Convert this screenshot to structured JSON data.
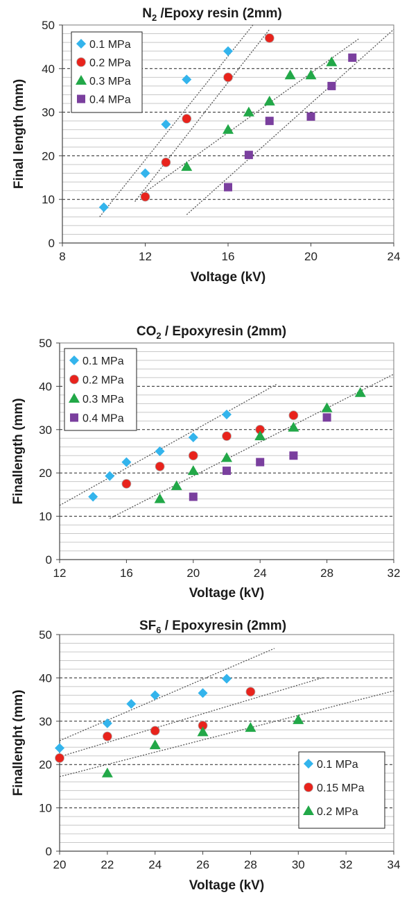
{
  "chart_data": [
    {
      "type": "scatter",
      "title": {
        "pre": "N",
        "sub": "2",
        "post": " /Epoxy resin  (2mm)"
      },
      "xlabel": "Voltage (kV)",
      "ylabel": "Final length (mm)",
      "xlim": [
        8,
        24
      ],
      "ylim": [
        0,
        50
      ],
      "xticks": [
        8,
        12,
        16,
        20,
        24
      ],
      "yticks": [
        0,
        10,
        20,
        30,
        40,
        50
      ],
      "legend_position": "top-left",
      "series": [
        {
          "name": "0.1 MPa",
          "marker": "diamond",
          "color": "#33b4ec",
          "x": [
            10,
            12,
            13,
            14,
            16
          ],
          "y": [
            8.2,
            16,
            27.2,
            37.5,
            44
          ]
        },
        {
          "name": "0.2 MPa",
          "marker": "circle",
          "color": "#e8231c",
          "x": [
            12,
            13,
            14,
            16,
            18
          ],
          "y": [
            10.6,
            18.5,
            28.5,
            38,
            47
          ]
        },
        {
          "name": "0.3 MPa",
          "marker": "triangle",
          "color": "#22a848",
          "x": [
            14,
            16,
            17,
            18,
            19,
            20,
            21
          ],
          "y": [
            17.5,
            26,
            30,
            32.5,
            38.5,
            38.5,
            41.5
          ]
        },
        {
          "name": "0.4 MPa",
          "marker": "square",
          "color": "#7a3f9e",
          "x": [
            16,
            17,
            18,
            20,
            21,
            22
          ],
          "y": [
            12.8,
            20.2,
            28,
            29,
            36,
            42.5
          ]
        }
      ],
      "trendlines": [
        {
          "x": [
            9.8,
            17.2
          ],
          "y": [
            6,
            50
          ]
        },
        {
          "x": [
            11.5,
            18
          ],
          "y": [
            9.5,
            49
          ]
        },
        {
          "x": [
            11.8,
            22.3
          ],
          "y": [
            11,
            46.8
          ]
        },
        {
          "x": [
            14,
            24
          ],
          "y": [
            6.5,
            49
          ]
        }
      ]
    },
    {
      "type": "scatter",
      "title": {
        "pre": "CO",
        "sub": "2",
        "post": " / Epoxyresin (2mm)"
      },
      "xlabel": "Voltage (kV)",
      "ylabel": "Finallength (mm)",
      "xlim": [
        12,
        32
      ],
      "ylim": [
        0,
        50
      ],
      "xticks": [
        12,
        16,
        20,
        24,
        28,
        32
      ],
      "yticks": [
        0,
        10,
        20,
        30,
        40,
        50
      ],
      "legend_position": "top-left",
      "series": [
        {
          "name": "0.1 MPa",
          "marker": "diamond",
          "color": "#33b4ec",
          "x": [
            14,
            15,
            16,
            18,
            20,
            22
          ],
          "y": [
            14.5,
            19.3,
            22.5,
            25,
            28.2,
            33.5
          ]
        },
        {
          "name": "0.2 MPa",
          "marker": "circle",
          "color": "#e8231c",
          "x": [
            16,
            18,
            20,
            22,
            24,
            26
          ],
          "y": [
            17.5,
            21.5,
            24,
            28.5,
            30,
            33.3
          ]
        },
        {
          "name": "0.3 MPa",
          "marker": "triangle",
          "color": "#22a848",
          "x": [
            18,
            19,
            20,
            22,
            24,
            26,
            28,
            30
          ],
          "y": [
            14,
            17,
            20.5,
            23.5,
            28.5,
            30.5,
            35,
            38.5
          ]
        },
        {
          "name": "0.4 MPa",
          "marker": "square",
          "color": "#7a3f9e",
          "x": [
            20,
            22,
            24,
            26,
            28
          ],
          "y": [
            14.5,
            20.5,
            22.5,
            24,
            32.8
          ]
        }
      ],
      "trendlines": [
        {
          "x": [
            12,
            25
          ],
          "y": [
            12.5,
            40.5
          ]
        },
        {
          "x": [
            15,
            32
          ],
          "y": [
            9.5,
            42.8
          ]
        }
      ]
    },
    {
      "type": "scatter",
      "title": {
        "pre": "SF",
        "sub": "6",
        "post": " / Epoxyresin (2mm)"
      },
      "xlabel": "Voltage (kV)",
      "ylabel": "Finallenght (mm)",
      "xlim": [
        20,
        34
      ],
      "ylim": [
        0,
        50
      ],
      "xticks": [
        20,
        22,
        24,
        26,
        28,
        30,
        32,
        34
      ],
      "yticks": [
        0,
        10,
        20,
        30,
        40,
        50
      ],
      "legend_position": "center-right",
      "series": [
        {
          "name": "0.1 MPa",
          "marker": "diamond",
          "color": "#33b4ec",
          "x": [
            20,
            22,
            23,
            24,
            26,
            27
          ],
          "y": [
            23.8,
            29.5,
            34,
            36,
            36.5,
            39.8
          ]
        },
        {
          "name": "0.15 MPa",
          "marker": "circle",
          "color": "#e8231c",
          "x": [
            20,
            22,
            24,
            26,
            28
          ],
          "y": [
            21.5,
            26.5,
            27.8,
            29,
            36.8
          ]
        },
        {
          "name": "0.2 MPa",
          "marker": "triangle",
          "color": "#22a848",
          "x": [
            22,
            24,
            26,
            28,
            30
          ],
          "y": [
            18,
            24.5,
            27.5,
            28.5,
            30.3
          ]
        }
      ],
      "trendlines": [
        {
          "x": [
            20,
            29
          ],
          "y": [
            25.5,
            46.8
          ]
        },
        {
          "x": [
            20,
            31
          ],
          "y": [
            21.8,
            40
          ]
        },
        {
          "x": [
            20,
            34
          ],
          "y": [
            17.2,
            37
          ]
        }
      ]
    }
  ]
}
